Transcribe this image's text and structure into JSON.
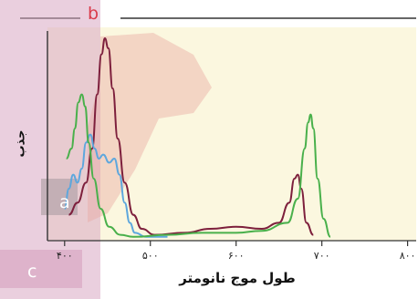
{
  "panel_labels": {
    "b": "b",
    "a": "a",
    "c": "c"
  },
  "colors": {
    "plot_bg": "#fbf7df",
    "overlay_pink": "#d9a7c3",
    "overlay_rose": "#e8a7a0",
    "overlay_slate": "#b9a8ae",
    "accent_red": "#d93a4a"
  },
  "chart_data": {
    "type": "line",
    "xlabel": "طول موج نانومتر",
    "ylabel": "جذب",
    "x_ticks": [
      400,
      500,
      600,
      700,
      800
    ],
    "x_tick_labels": [
      "۴۰۰",
      "۵۰۰",
      "۶۰۰",
      "۷۰۰",
      "۸۰۰"
    ],
    "xlim": [
      380,
      810
    ],
    "ylim": [
      0,
      1
    ],
    "grid": false,
    "legend": "none",
    "series": [
      {
        "color": "#7d1f3c",
        "points": [
          [
            405,
            0.12
          ],
          [
            415,
            0.18
          ],
          [
            425,
            0.28
          ],
          [
            432,
            0.45
          ],
          [
            438,
            0.72
          ],
          [
            443,
            0.92
          ],
          [
            447,
            1.0
          ],
          [
            451,
            0.95
          ],
          [
            456,
            0.75
          ],
          [
            462,
            0.5
          ],
          [
            470,
            0.28
          ],
          [
            480,
            0.12
          ],
          [
            490,
            0.05
          ],
          [
            505,
            0.02
          ],
          [
            540,
            0.03
          ],
          [
            570,
            0.05
          ],
          [
            600,
            0.06
          ],
          [
            630,
            0.05
          ],
          [
            650,
            0.08
          ],
          [
            662,
            0.18
          ],
          [
            668,
            0.3
          ],
          [
            672,
            0.32
          ],
          [
            676,
            0.25
          ],
          [
            682,
            0.08
          ],
          [
            690,
            0.02
          ]
        ]
      },
      {
        "color": "#5da7dd",
        "points": [
          [
            400,
            0.15
          ],
          [
            405,
            0.25
          ],
          [
            410,
            0.32
          ],
          [
            415,
            0.28
          ],
          [
            420,
            0.35
          ],
          [
            425,
            0.48
          ],
          [
            430,
            0.52
          ],
          [
            435,
            0.45
          ],
          [
            440,
            0.4
          ],
          [
            445,
            0.42
          ],
          [
            452,
            0.38
          ],
          [
            458,
            0.4
          ],
          [
            464,
            0.32
          ],
          [
            470,
            0.18
          ],
          [
            476,
            0.08
          ],
          [
            482,
            0.03
          ],
          [
            495,
            0.01
          ],
          [
            520,
            0.01
          ]
        ]
      },
      {
        "color": "#49b04b",
        "points": [
          [
            402,
            0.4
          ],
          [
            408,
            0.45
          ],
          [
            412,
            0.55
          ],
          [
            416,
            0.68
          ],
          [
            420,
            0.72
          ],
          [
            424,
            0.66
          ],
          [
            428,
            0.48
          ],
          [
            434,
            0.3
          ],
          [
            442,
            0.15
          ],
          [
            452,
            0.06
          ],
          [
            465,
            0.02
          ],
          [
            480,
            0.01
          ],
          [
            520,
            0.02
          ],
          [
            560,
            0.03
          ],
          [
            600,
            0.03
          ],
          [
            630,
            0.04
          ],
          [
            660,
            0.08
          ],
          [
            672,
            0.2
          ],
          [
            680,
            0.45
          ],
          [
            684,
            0.58
          ],
          [
            687,
            0.62
          ],
          [
            690,
            0.55
          ],
          [
            695,
            0.3
          ],
          [
            702,
            0.1
          ],
          [
            710,
            0.01
          ]
        ]
      }
    ]
  }
}
